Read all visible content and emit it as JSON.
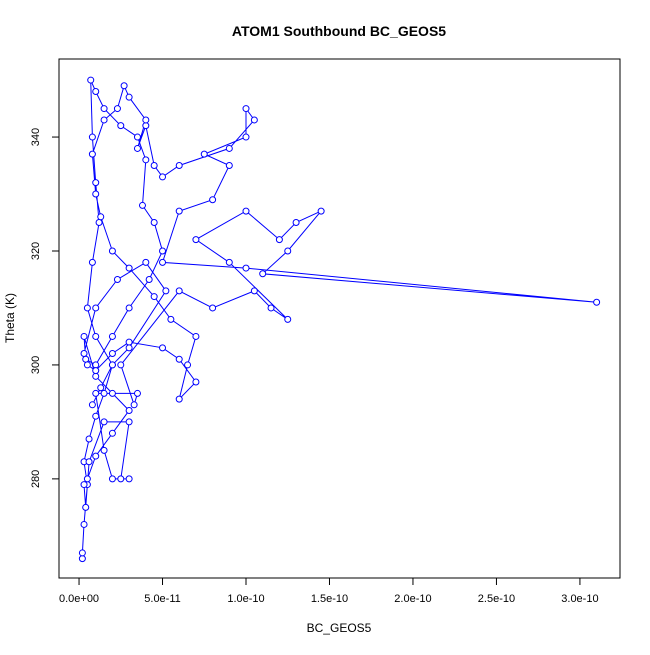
{
  "chart_data": {
    "type": "line",
    "title": "ATOM1 Southbound BC_GEOS5",
    "x_label": "BC_GEOS5",
    "y_label": "Theta (K)",
    "x": [
      2e-12,
      2e-12,
      3e-12,
      5e-12,
      3e-12,
      6e-12,
      1e-11,
      1.5e-11,
      2e-11,
      1e-11,
      5e-12,
      8e-12,
      1.2e-11,
      1e-11,
      8e-12,
      7e-12,
      1e-11,
      1.5e-11,
      2.5e-11,
      3.5e-11,
      4e-11,
      3.8e-11,
      4.5e-11,
      5e-11,
      4.2e-11,
      3e-11,
      2e-11,
      1e-11,
      4e-12,
      3e-12,
      1e-11,
      2e-11,
      3e-11,
      2e-11,
      1e-11,
      5e-12,
      3e-12,
      4e-12,
      6e-12,
      1.5e-11,
      3e-11,
      2.5e-11,
      3e-11,
      2e-11,
      1.5e-11,
      1e-11,
      3.5e-11,
      3.3e-11,
      2.5e-11,
      6e-11,
      8e-11,
      1.05e-10,
      1.15e-10,
      1.25e-10,
      9e-11,
      7e-11,
      1e-10,
      1.2e-10,
      1.3e-10,
      1.45e-10,
      1.25e-10,
      1.1e-10,
      3.1e-10,
      1e-10,
      5e-11,
      6e-11,
      8e-11,
      9e-11,
      7.5e-11,
      1e-10,
      1e-10,
      1.05e-10,
      9e-11,
      6e-11,
      5e-11,
      4.5e-11,
      4e-11,
      3.5e-11,
      4e-11,
      3e-11,
      2.7e-11,
      2.3e-11,
      1.5e-11,
      8e-12,
      1e-11,
      1.3e-11,
      2e-11,
      3e-11,
      4.5e-11,
      5.5e-11,
      7e-11,
      6.5e-11,
      6e-11,
      7e-11,
      6e-11,
      5e-11,
      3e-11,
      2e-11,
      1e-11,
      5e-12,
      3e-12,
      1e-11,
      2.3e-11,
      4e-11,
      5.2e-11,
      3e-11,
      2e-11,
      1.3e-11,
      8e-12
    ],
    "series": [
      {
        "name": "BC_GEOS5",
        "color": "#0000ff",
        "values": [
          266,
          267,
          272,
          279,
          283,
          287,
          291,
          295,
          300,
          305,
          310,
          318,
          325,
          332,
          340,
          350,
          348,
          345,
          342,
          340,
          336,
          328,
          325,
          320,
          315,
          310,
          305,
          300,
          301,
          305,
          298,
          295,
          292,
          288,
          284,
          280,
          279,
          275,
          283,
          290,
          290,
          280,
          280,
          280,
          285,
          295,
          295,
          293,
          300,
          313,
          310,
          313,
          310,
          308,
          318,
          322,
          327,
          322,
          325,
          327,
          320,
          316,
          311,
          317,
          318,
          327,
          329,
          335,
          337,
          340,
          345,
          343,
          338,
          335,
          333,
          335,
          342,
          338,
          343,
          347,
          349,
          345,
          343,
          337,
          330,
          326,
          320,
          317,
          312,
          308,
          305,
          300,
          294,
          297,
          301,
          303,
          304,
          302,
          299,
          300,
          302,
          310,
          315,
          318,
          313,
          303,
          300,
          296,
          293
        ]
      }
    ],
    "xlim": [
      -1.2e-11,
      3.24e-10
    ],
    "ylim": [
      262.6,
      353.7
    ],
    "xticks": [
      {
        "value": 0,
        "label": "0.0e+00"
      },
      {
        "value": 5e-11,
        "label": "5.0e-11"
      },
      {
        "value": 1e-10,
        "label": "1.0e-10"
      },
      {
        "value": 1.5e-10,
        "label": "1.5e-10"
      },
      {
        "value": 2e-10,
        "label": "2.0e-10"
      },
      {
        "value": 2.5e-10,
        "label": "2.5e-10"
      },
      {
        "value": 3e-10,
        "label": "3.0e-10"
      }
    ],
    "yticks": [
      280,
      300,
      320,
      340
    ],
    "markers": "open-circle"
  }
}
